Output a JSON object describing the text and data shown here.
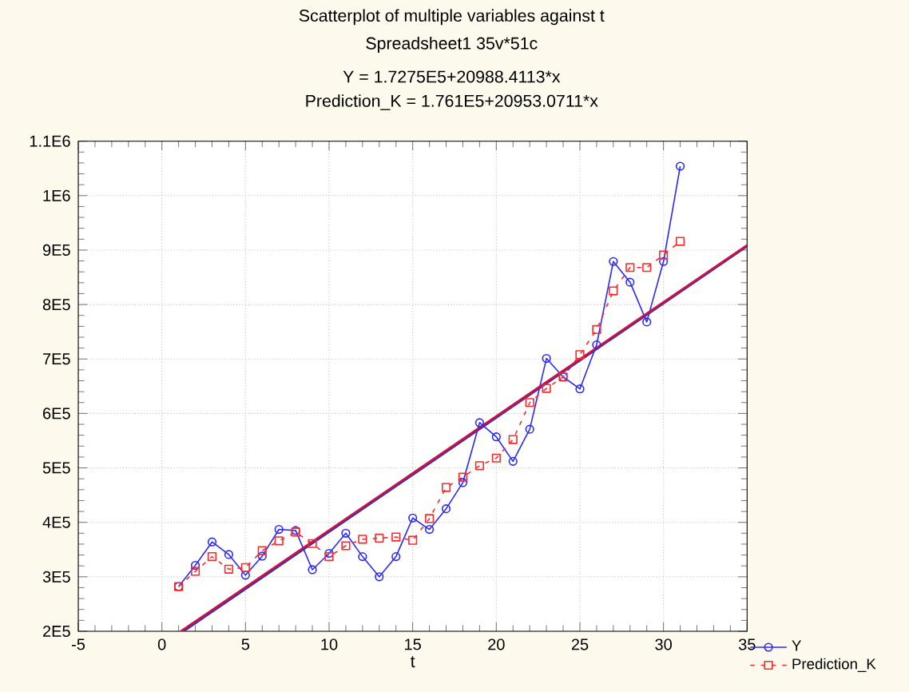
{
  "chart_data": {
    "type": "line",
    "title": "Scatterplot of multiple variables against t",
    "subtitle": "Spreadsheet1 35v*51c",
    "annotations": [
      "Y = 1.7275E5+20988.4113*x",
      "Prediction_K = 1.761E5+20953.0711*x"
    ],
    "xlabel": "t",
    "x": [
      1,
      2,
      3,
      4,
      5,
      6,
      7,
      8,
      9,
      10,
      11,
      12,
      13,
      14,
      15,
      16,
      17,
      18,
      19,
      20,
      21,
      22,
      23,
      24,
      25,
      26,
      27,
      28,
      29,
      30,
      31
    ],
    "series": [
      {
        "name": "Y",
        "color": "#2828ff",
        "marker": "circle",
        "line_style": "solid",
        "values": [
          282000,
          321000,
          364000,
          341000,
          303000,
          338000,
          387000,
          385000,
          313000,
          343000,
          380000,
          337000,
          300000,
          337000,
          408000,
          387000,
          425000,
          473000,
          583000,
          557000,
          512000,
          571000,
          701000,
          667000,
          645000,
          726000,
          879000,
          841000,
          768000,
          879000,
          1054000
        ]
      },
      {
        "name": "Prediction_K",
        "color": "#ff2828",
        "marker": "square",
        "line_style": "dashed",
        "values": [
          282000,
          310000,
          337000,
          314000,
          317000,
          348000,
          366000,
          382000,
          361000,
          337000,
          357000,
          369000,
          371000,
          373000,
          367000,
          407000,
          464000,
          483000,
          504000,
          518000,
          552000,
          620000,
          646000,
          667000,
          708000,
          754000,
          825000,
          868000,
          868000,
          891000,
          916000
        ]
      },
      {
        "type": "line",
        "color": "#3030c8",
        "marker": "none",
        "line_style": "solid",
        "x": [
          1.3,
          35
        ],
        "values": [
          200000,
          907000
        ]
      },
      {
        "type": "line",
        "color": "#d01040",
        "marker": "none",
        "line_style": "solid",
        "x": [
          1.14,
          35
        ],
        "values": [
          200000,
          909000
        ]
      }
    ],
    "xlim": [
      -5,
      35
    ],
    "xticks": [
      -5,
      0,
      5,
      10,
      15,
      20,
      25,
      30,
      35
    ],
    "ylim": [
      200000,
      1100000
    ],
    "yticks": [
      {
        "value": 200000,
        "label": "2E5"
      },
      {
        "value": 300000,
        "label": "3E5"
      },
      {
        "value": 400000,
        "label": "4E5"
      },
      {
        "value": 500000,
        "label": "5E5"
      },
      {
        "value": 600000,
        "label": "6E5"
      },
      {
        "value": 700000,
        "label": "7E5"
      },
      {
        "value": 800000,
        "label": "8E5"
      },
      {
        "value": 900000,
        "label": "9E5"
      },
      {
        "value": 1000000,
        "label": "1E6"
      },
      {
        "value": 1100000,
        "label": "1.1E6"
      }
    ],
    "grid": true,
    "legend": "bottom right"
  }
}
